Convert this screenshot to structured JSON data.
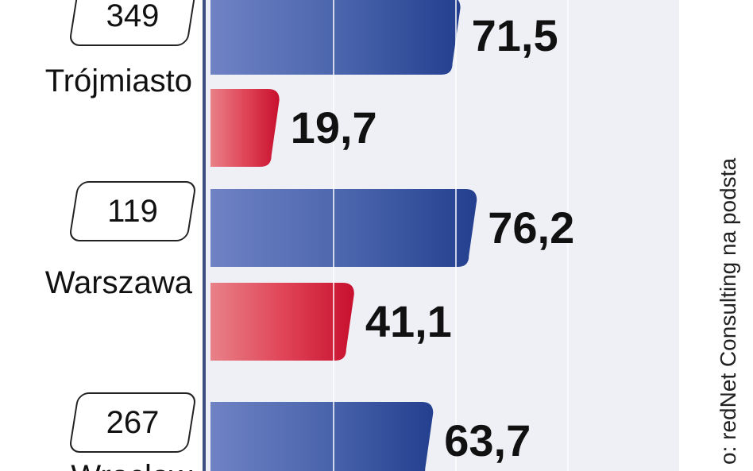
{
  "chart_data": {
    "type": "bar",
    "orientation": "horizontal",
    "categories": [
      "Trójmiasto",
      "Warszawa",
      "Wrocław"
    ],
    "counts": [
      "349",
      "119",
      "267"
    ],
    "series": [
      {
        "values": [
          71.5,
          76.2,
          63.7
        ],
        "labels": [
          "71,5",
          "76,2",
          "63,7"
        ],
        "color": "#2a4a9a"
      },
      {
        "values": [
          19.7,
          41.1,
          null
        ],
        "labels": [
          "19,7",
          "41,1",
          ""
        ],
        "color": "#d8263c"
      }
    ],
    "xlim": [
      0,
      100
    ],
    "grid": true,
    "source_note": "o: redNet Consulting na podsta"
  }
}
